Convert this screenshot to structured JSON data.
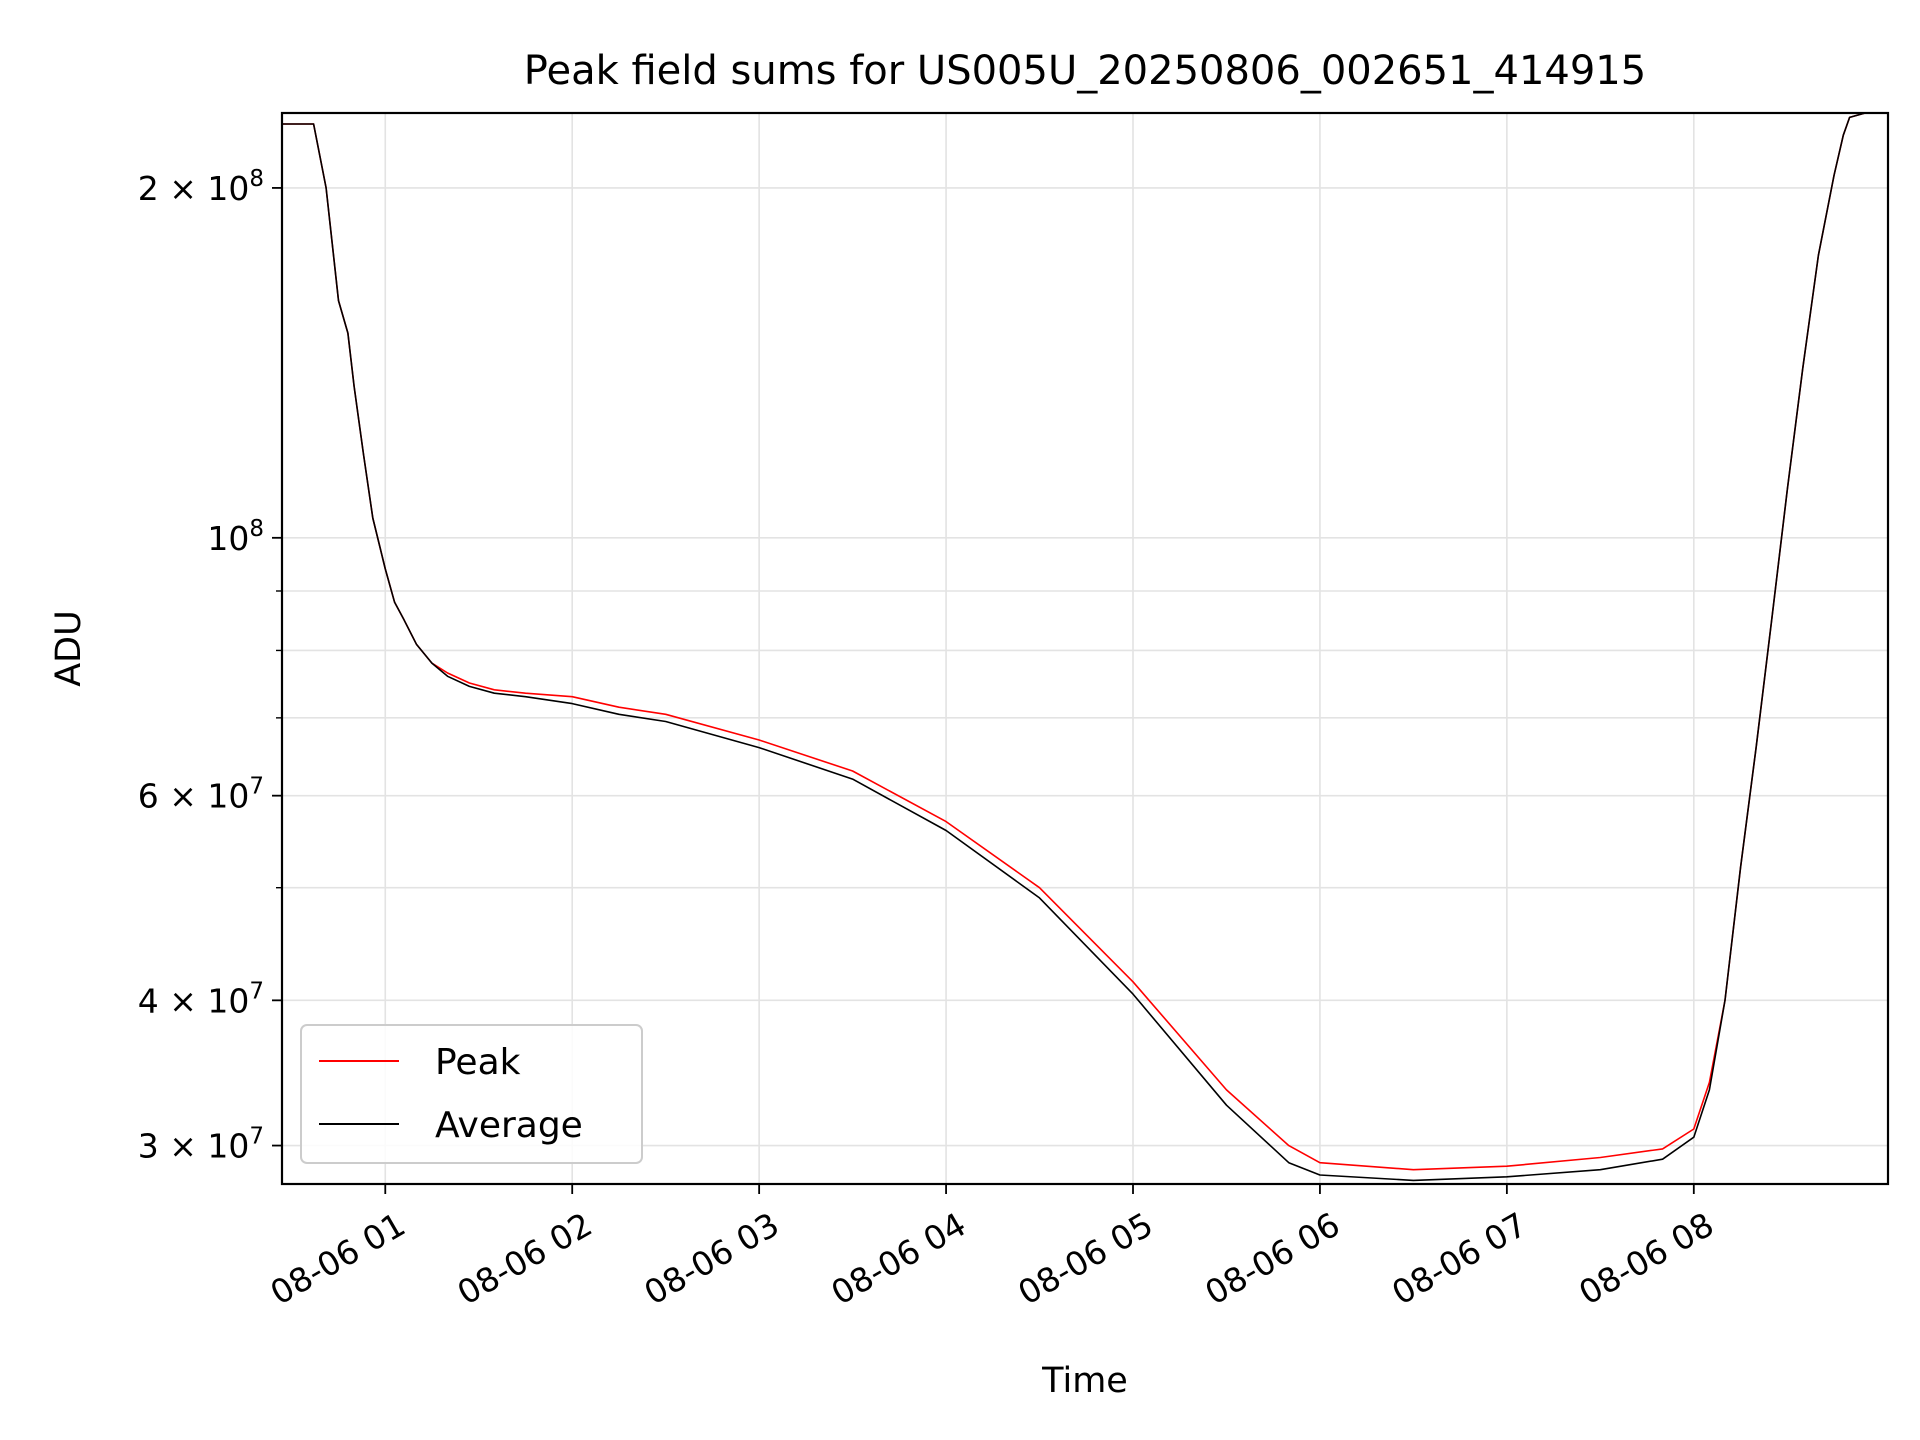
{
  "chart_data": {
    "type": "line",
    "title": "Peak field sums for US005U_20250806_002651_414915",
    "xlabel": "Time",
    "ylabel": "ADU",
    "yscale": "log",
    "ylim": [
      27800000,
      232000000
    ],
    "xlim": [
      "2025-08-06 00:26:51",
      "2025-08-06 09:02:20"
    ],
    "x_ticks": [
      {
        "value": "2025-08-06 01:00",
        "label": "08-06 01"
      },
      {
        "value": "2025-08-06 02:00",
        "label": "08-06 02"
      },
      {
        "value": "2025-08-06 03:00",
        "label": "08-06 03"
      },
      {
        "value": "2025-08-06 04:00",
        "label": "08-06 04"
      },
      {
        "value": "2025-08-06 05:00",
        "label": "08-06 05"
      },
      {
        "value": "2025-08-06 06:00",
        "label": "08-06 06"
      },
      {
        "value": "2025-08-06 07:00",
        "label": "08-06 07"
      },
      {
        "value": "2025-08-06 08:00",
        "label": "08-06 08"
      }
    ],
    "y_major_ticks": [
      {
        "value": 30000000,
        "base": "3",
        "exp": "7"
      },
      {
        "value": 40000000,
        "base": "4",
        "exp": "7"
      },
      {
        "value": 60000000,
        "base": "6",
        "exp": "7"
      },
      {
        "value": 100000000,
        "base": "",
        "exp": "8"
      },
      {
        "value": 200000000,
        "base": "2",
        "exp": "8"
      }
    ],
    "y_minor_ticks": [
      50000000,
      70000000,
      80000000,
      90000000
    ],
    "grid": true,
    "legend_position": "lower-left",
    "series": [
      {
        "name": "Peak",
        "color": "#ff0000",
        "x": [
          "2025-08-06 00:26:51",
          "2025-08-06 00:37:00",
          "2025-08-06 00:41:00",
          "2025-08-06 00:45:00",
          "2025-08-06 00:48:00",
          "2025-08-06 00:50:00",
          "2025-08-06 00:53:00",
          "2025-08-06 00:56:00",
          "2025-08-06 01:00:00",
          "2025-08-06 01:03:00",
          "2025-08-06 01:06:00",
          "2025-08-06 01:10:00",
          "2025-08-06 01:15:00",
          "2025-08-06 01:20:00",
          "2025-08-06 01:27:00",
          "2025-08-06 01:35:00",
          "2025-08-06 01:45:00",
          "2025-08-06 02:00:00",
          "2025-08-06 02:15:00",
          "2025-08-06 02:30:00",
          "2025-08-06 03:00:00",
          "2025-08-06 03:30:00",
          "2025-08-06 04:00:00",
          "2025-08-06 04:30:00",
          "2025-08-06 05:00:00",
          "2025-08-06 05:30:00",
          "2025-08-06 05:50:00",
          "2025-08-06 06:00:00",
          "2025-08-06 06:30:00",
          "2025-08-06 07:00:00",
          "2025-08-06 07:30:00",
          "2025-08-06 07:50:00",
          "2025-08-06 08:00:00",
          "2025-08-06 08:05:00",
          "2025-08-06 08:10:00",
          "2025-08-06 08:15:00",
          "2025-08-06 08:20:00",
          "2025-08-06 08:25:00",
          "2025-08-06 08:30:00",
          "2025-08-06 08:35:00",
          "2025-08-06 08:40:00",
          "2025-08-06 08:45:00",
          "2025-08-06 08:48:00",
          "2025-08-06 08:50:00",
          "2025-08-06 08:55:00",
          "2025-08-06 09:02:20"
        ],
        "values": [
          227000000,
          227000000,
          200000000,
          160000000,
          150000000,
          135000000,
          118000000,
          104000000,
          94000000,
          88000000,
          85000000,
          81000000,
          78000000,
          76500000,
          75000000,
          74000000,
          73500000,
          73000000,
          71500000,
          70500000,
          67000000,
          63000000,
          57000000,
          50000000,
          41500000,
          33500000,
          30000000,
          29000000,
          28600000,
          28800000,
          29300000,
          29800000,
          31000000,
          34000000,
          40000000,
          52000000,
          66000000,
          85000000,
          110000000,
          140000000,
          175000000,
          205000000,
          222000000,
          230000000,
          232000000,
          232000000
        ]
      },
      {
        "name": "Average",
        "color": "#000000",
        "x": [
          "2025-08-06 00:26:51",
          "2025-08-06 00:37:00",
          "2025-08-06 00:41:00",
          "2025-08-06 00:45:00",
          "2025-08-06 00:48:00",
          "2025-08-06 00:50:00",
          "2025-08-06 00:53:00",
          "2025-08-06 00:56:00",
          "2025-08-06 01:00:00",
          "2025-08-06 01:03:00",
          "2025-08-06 01:06:00",
          "2025-08-06 01:10:00",
          "2025-08-06 01:15:00",
          "2025-08-06 01:20:00",
          "2025-08-06 01:27:00",
          "2025-08-06 01:35:00",
          "2025-08-06 01:45:00",
          "2025-08-06 02:00:00",
          "2025-08-06 02:15:00",
          "2025-08-06 02:30:00",
          "2025-08-06 03:00:00",
          "2025-08-06 03:30:00",
          "2025-08-06 04:00:00",
          "2025-08-06 04:30:00",
          "2025-08-06 05:00:00",
          "2025-08-06 05:30:00",
          "2025-08-06 05:50:00",
          "2025-08-06 06:00:00",
          "2025-08-06 06:30:00",
          "2025-08-06 07:00:00",
          "2025-08-06 07:30:00",
          "2025-08-06 07:50:00",
          "2025-08-06 08:00:00",
          "2025-08-06 08:05:00",
          "2025-08-06 08:10:00",
          "2025-08-06 08:15:00",
          "2025-08-06 08:20:00",
          "2025-08-06 08:25:00",
          "2025-08-06 08:30:00",
          "2025-08-06 08:35:00",
          "2025-08-06 08:40:00",
          "2025-08-06 08:45:00",
          "2025-08-06 08:48:00",
          "2025-08-06 08:50:00",
          "2025-08-06 08:55:00",
          "2025-08-06 09:02:20"
        ],
        "values": [
          227000000,
          227000000,
          200000000,
          160000000,
          150000000,
          135000000,
          118000000,
          104000000,
          94000000,
          88000000,
          85000000,
          81000000,
          78000000,
          76000000,
          74500000,
          73500000,
          73000000,
          72000000,
          70500000,
          69500000,
          66000000,
          62000000,
          56000000,
          49000000,
          40500000,
          32500000,
          29000000,
          28300000,
          28000000,
          28200000,
          28600000,
          29200000,
          30500000,
          33500000,
          40000000,
          52000000,
          66000000,
          85000000,
          110000000,
          140000000,
          175000000,
          205000000,
          222000000,
          230000000,
          232000000,
          232000000
        ]
      }
    ]
  }
}
